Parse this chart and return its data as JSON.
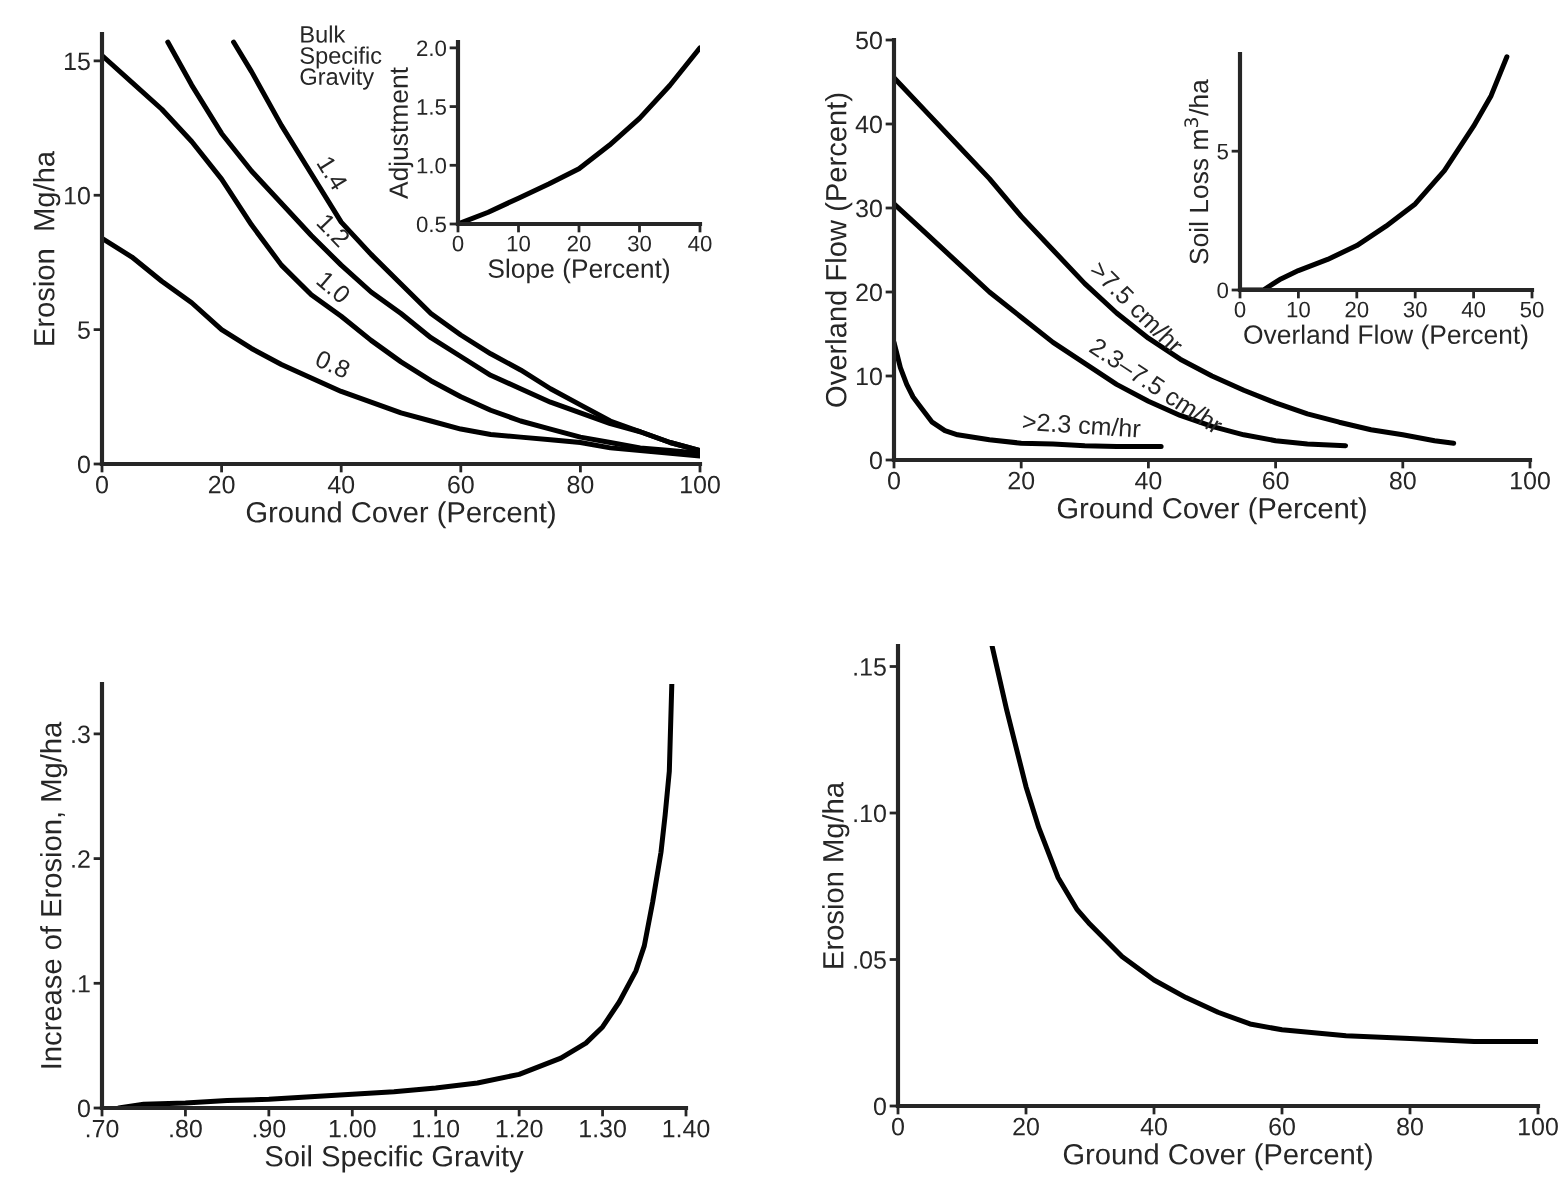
{
  "chart_data": [
    {
      "type": "line",
      "xlabel": "Ground Cover (Percent)",
      "ylabel": "Erosion  Mg/ha",
      "xlim": [
        0,
        100
      ],
      "ylim": [
        0,
        16
      ],
      "xticks": [
        0,
        20,
        40,
        60,
        80,
        100
      ],
      "yticks": [
        0,
        5,
        10,
        15
      ],
      "series": [
        {
          "color": "#000000",
          "x": [
            22,
            25,
            30,
            35,
            40,
            45,
            50,
            55,
            60,
            65,
            70,
            75,
            80,
            85,
            90,
            95,
            100
          ],
          "values": [
            15.7,
            14.6,
            12.6,
            10.8,
            9.0,
            7.8,
            6.7,
            5.6,
            4.8,
            4.1,
            3.5,
            2.8,
            2.2,
            1.6,
            1.2,
            0.8,
            0.5
          ]
        },
        {
          "color": "#000000",
          "x": [
            11,
            15,
            20,
            25,
            30,
            35,
            40,
            45,
            50,
            55,
            60,
            65,
            70,
            75,
            80,
            85,
            90,
            95,
            100
          ],
          "values": [
            15.7,
            14.1,
            12.3,
            10.9,
            9.7,
            8.5,
            7.4,
            6.4,
            5.6,
            4.7,
            4.0,
            3.3,
            2.8,
            2.3,
            1.9,
            1.5,
            1.2,
            0.8,
            0.5
          ]
        },
        {
          "color": "#000000",
          "x": [
            0,
            5,
            10,
            15,
            20,
            25,
            30,
            35,
            40,
            45,
            50,
            55,
            60,
            65,
            70,
            75,
            80,
            85,
            90,
            95,
            100
          ],
          "values": [
            15.2,
            14.2,
            13.2,
            12.0,
            10.6,
            8.9,
            7.4,
            6.3,
            5.5,
            4.6,
            3.8,
            3.1,
            2.5,
            2.0,
            1.6,
            1.3,
            1.0,
            0.8,
            0.6,
            0.5,
            0.4
          ]
        },
        {
          "color": "#000000",
          "x": [
            0,
            5,
            10,
            15,
            20,
            25,
            30,
            35,
            40,
            45,
            50,
            55,
            60,
            65,
            70,
            75,
            80,
            85,
            90,
            95,
            100
          ],
          "values": [
            8.4,
            7.7,
            6.8,
            6.0,
            5.0,
            4.3,
            3.7,
            3.2,
            2.7,
            2.3,
            1.9,
            1.6,
            1.3,
            1.1,
            1.0,
            0.9,
            0.8,
            0.6,
            0.5,
            0.4,
            0.3
          ]
        }
      ],
      "annotations": [
        "Bulk\nSpecific\nGravity",
        {
          "text": "1.4",
          "x": 35,
          "y": 10.8
        },
        {
          "text": "1.2",
          "x": 35,
          "y": 8.5
        },
        {
          "text": "1.0",
          "x": 35,
          "y": 6.3
        },
        {
          "text": "0.8",
          "x": 35,
          "y": 3.2
        }
      ]
    },
    {
      "type": "line",
      "xlabel": "Slope (Percent)",
      "ylabel": "Adjustment",
      "xlim": [
        0,
        40
      ],
      "ylim": [
        0.5,
        2.05
      ],
      "xticks": [
        0,
        10,
        20,
        30,
        40
      ],
      "yticks": [
        0.5,
        {
          "value": 1.0,
          "label": "1.0"
        },
        1.5,
        {
          "value": 2.0,
          "label": "2.0"
        }
      ],
      "series": [
        {
          "color": "#000000",
          "x": [
            0,
            5,
            10,
            15,
            20,
            25,
            30,
            35,
            40
          ],
          "values": [
            0.5,
            0.6,
            0.72,
            0.84,
            0.97,
            1.17,
            1.4,
            1.68,
            2.0
          ]
        }
      ]
    },
    {
      "type": "line",
      "xlabel": "Ground Cover (Percent)",
      "ylabel": "Overland Flow (Percent)",
      "xlim": [
        0,
        100
      ],
      "ylim": [
        0,
        50
      ],
      "xticks": [
        0,
        20,
        40,
        60,
        80,
        100
      ],
      "yticks": [
        0,
        10,
        20,
        30,
        40,
        50
      ],
      "series": [
        {
          "color": "#000000",
          "x": [
            0,
            5,
            10,
            15,
            20,
            25,
            30,
            35,
            40,
            45,
            50,
            55,
            60,
            65,
            70,
            75,
            80,
            85,
            88
          ],
          "values": [
            45.5,
            41.5,
            37.5,
            33.5,
            29.0,
            25.0,
            21.0,
            17.5,
            14.5,
            12.0,
            10.0,
            8.3,
            6.8,
            5.5,
            4.5,
            3.6,
            3.0,
            2.3,
            2.0
          ]
        },
        {
          "color": "#000000",
          "x": [
            0,
            5,
            10,
            15,
            20,
            25,
            30,
            35,
            40,
            45,
            50,
            55,
            60,
            65,
            71
          ],
          "values": [
            30.5,
            27.0,
            23.5,
            20.0,
            17.0,
            14.0,
            11.5,
            9.0,
            7.0,
            5.3,
            4.0,
            3.0,
            2.3,
            1.9,
            1.7
          ]
        },
        {
          "color": "#000000",
          "x": [
            0,
            1,
            2,
            3,
            4,
            6,
            8,
            10,
            15,
            20,
            25,
            30,
            35,
            42
          ],
          "values": [
            14.0,
            11.0,
            9.0,
            7.5,
            6.5,
            4.5,
            3.5,
            3.0,
            2.4,
            2.0,
            1.9,
            1.7,
            1.6,
            1.6
          ]
        }
      ],
      "annotations": [
        {
          "text": ">7.5 cm/hr",
          "x": 30,
          "y": 21.0
        },
        {
          "text": "2.3–7.5 cm/hr",
          "x": 30,
          "y": 11.5
        },
        {
          "text": ">2.3 cm/hr",
          "x": 20,
          "y": 2.0
        }
      ]
    },
    {
      "type": "line",
      "xlabel": "Overland Flow (Percent)",
      "ylabel": "Soil Loss m$^{3}$/ha",
      "xlim": [
        0,
        50
      ],
      "ylim": [
        0,
        8.5
      ],
      "xticks": [
        0,
        10,
        20,
        30,
        40,
        50
      ],
      "yticks": [
        0,
        5
      ],
      "series": [
        {
          "color": "#000000",
          "x": [
            0,
            4,
            7,
            10,
            15,
            20,
            25,
            30,
            35,
            40,
            43,
            45.7
          ],
          "values": [
            0,
            0,
            0.4,
            0.7,
            1.1,
            1.6,
            2.3,
            3.1,
            4.3,
            5.9,
            7.0,
            8.4
          ]
        }
      ]
    },
    {
      "type": "line",
      "xlabel": "Soil Specific Gravity",
      "ylabel": "Increase of Erosion, Mg/ha",
      "xlim": [
        0.7,
        1.4
      ],
      "ylim": [
        0,
        0.34
      ],
      "xticks": [
        {
          "value": 0.7,
          "label": ".70"
        },
        {
          "value": 0.8,
          "label": ".80"
        },
        {
          "value": 0.9,
          "label": ".90"
        },
        {
          "value": 1.0,
          "label": "1.00"
        },
        {
          "value": 1.1,
          "label": "1.10"
        },
        {
          "value": 1.2,
          "label": "1.20"
        },
        {
          "value": 1.3,
          "label": "1.30"
        },
        {
          "value": 1.4,
          "label": "1.40"
        }
      ],
      "yticks": [
        0,
        {
          "value": 0.1,
          "label": ".1"
        },
        {
          "value": 0.2,
          "label": ".2"
        },
        {
          "value": 0.3,
          "label": ".3"
        }
      ],
      "series": [
        {
          "color": "#000000",
          "x": [
            0.72,
            0.75,
            0.8,
            0.85,
            0.9,
            0.95,
            1.0,
            1.05,
            1.1,
            1.15,
            1.2,
            1.25,
            1.28,
            1.3,
            1.32,
            1.34,
            1.35,
            1.36,
            1.37,
            1.375,
            1.38,
            1.383
          ],
          "values": [
            0,
            0.003,
            0.004,
            0.006,
            0.007,
            0.009,
            0.011,
            0.013,
            0.016,
            0.02,
            0.027,
            0.04,
            0.052,
            0.065,
            0.085,
            0.11,
            0.13,
            0.165,
            0.205,
            0.235,
            0.27,
            0.34
          ]
        }
      ]
    },
    {
      "type": "line",
      "xlabel": "Ground Cover (Percent)",
      "ylabel": "Erosion Mg/ha",
      "xlim": [
        0,
        100
      ],
      "ylim": [
        0,
        0.157
      ],
      "xticks": [
        0,
        20,
        40,
        60,
        80,
        100
      ],
      "yticks": [
        0,
        {
          "value": 0.05,
          "label": ".05"
        },
        {
          "value": 0.1,
          "label": ".10"
        },
        {
          "value": 0.15,
          "label": ".15"
        }
      ],
      "series": [
        {
          "color": "#000000",
          "x": [
            14.7,
            17,
            20,
            22,
            25,
            28,
            30,
            35,
            40,
            45,
            50,
            55,
            60,
            70,
            80,
            90,
            100
          ],
          "values": [
            0.157,
            0.135,
            0.109,
            0.095,
            0.078,
            0.067,
            0.062,
            0.051,
            0.043,
            0.037,
            0.032,
            0.028,
            0.026,
            0.024,
            0.023,
            0.022,
            0.022
          ]
        }
      ]
    }
  ]
}
